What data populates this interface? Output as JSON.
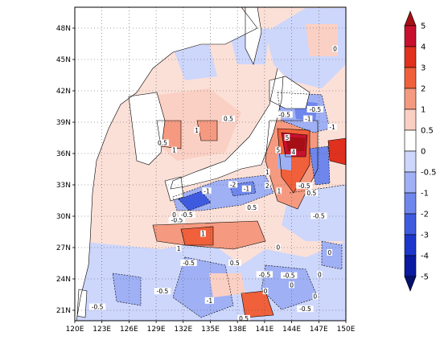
{
  "map": {
    "lon_ticks": [
      "120E",
      "123E",
      "126E",
      "129E",
      "132E",
      "135E",
      "138E",
      "141E",
      "144E",
      "147E",
      "150E"
    ],
    "lat_ticks": [
      "21N",
      "24N",
      "27N",
      "30N",
      "33N",
      "36N",
      "39N",
      "42N",
      "45N",
      "48N"
    ],
    "lon_range": [
      120,
      150
    ],
    "lat_range": [
      20,
      50
    ],
    "grid": "dotted",
    "projection": "lat-lon",
    "land_color": "#ffffff",
    "coastline_color": "#000000"
  },
  "colorbar": {
    "placement": "right",
    "levels": [
      "5",
      "4",
      "3",
      "2",
      "1",
      "0.5",
      "0",
      "-0.5",
      "-1",
      "-2",
      "-3",
      "-4",
      "-5"
    ],
    "colors": [
      "#a50f15",
      "#c8102e",
      "#e0301e",
      "#f0603a",
      "#f59a80",
      "#fbd0c4",
      "#ffffff",
      "#cdd6fb",
      "#9fb0f5",
      "#6f86ec",
      "#3e5be0",
      "#1c36cc",
      "#0a1aa0",
      "#05106e"
    ]
  },
  "contour_labels": [
    {
      "text": "0.5",
      "lon": 137.0,
      "lat": 39.3
    },
    {
      "text": "1",
      "lon": 133.5,
      "lat": 38.2
    },
    {
      "text": "0.5",
      "lon": 129.7,
      "lat": 37.0
    },
    {
      "text": "1",
      "lon": 131.0,
      "lat": 36.3
    },
    {
      "text": "-0.5",
      "lon": 146.6,
      "lat": 40.2
    },
    {
      "text": "-1",
      "lon": 145.8,
      "lat": 39.3
    },
    {
      "text": "-0.5",
      "lon": 143.2,
      "lat": 39.7
    },
    {
      "text": "-1",
      "lon": 148.5,
      "lat": 38.5
    },
    {
      "text": "5",
      "lon": 143.5,
      "lat": 37.5
    },
    {
      "text": "5",
      "lon": 142.5,
      "lat": 36.3
    },
    {
      "text": "4",
      "lon": 144.2,
      "lat": 36.1
    },
    {
      "text": "1",
      "lon": 141.3,
      "lat": 34.2
    },
    {
      "text": "2",
      "lon": 141.3,
      "lat": 32.9
    },
    {
      "text": "1",
      "lon": 142.6,
      "lat": 32.4
    },
    {
      "text": "-0.5",
      "lon": 145.4,
      "lat": 32.9
    },
    {
      "text": "0.5",
      "lon": 146.2,
      "lat": 32.2
    },
    {
      "text": "-1",
      "lon": 134.6,
      "lat": 32.4
    },
    {
      "text": "-2",
      "lon": 137.5,
      "lat": 33.0
    },
    {
      "text": "-1",
      "lon": 139.0,
      "lat": 32.6
    },
    {
      "text": "0.5",
      "lon": 139.6,
      "lat": 30.8
    },
    {
      "text": "-0.5",
      "lon": 147.0,
      "lat": 30.0
    },
    {
      "text": "-0.5",
      "lon": 131.3,
      "lat": 29.6
    },
    {
      "text": "-0.5",
      "lon": 132.4,
      "lat": 30.1
    },
    {
      "text": "0",
      "lon": 131.0,
      "lat": 30.1
    },
    {
      "text": "1",
      "lon": 134.2,
      "lat": 28.3
    },
    {
      "text": "1",
      "lon": 131.5,
      "lat": 26.9
    },
    {
      "text": "0",
      "lon": 142.5,
      "lat": 27.0
    },
    {
      "text": "-0.5",
      "lon": 132.6,
      "lat": 25.5
    },
    {
      "text": "0.5",
      "lon": 137.7,
      "lat": 25.5
    },
    {
      "text": "-0.5",
      "lon": 141.0,
      "lat": 24.4
    },
    {
      "text": "-0.5",
      "lon": 143.7,
      "lat": 24.3
    },
    {
      "text": "0",
      "lon": 147.1,
      "lat": 24.4
    },
    {
      "text": "0",
      "lon": 144.0,
      "lat": 23.4
    },
    {
      "text": "-0.5",
      "lon": 129.7,
      "lat": 22.8
    },
    {
      "text": "-1",
      "lon": 134.9,
      "lat": 21.9
    },
    {
      "text": "0",
      "lon": 141.1,
      "lat": 22.8
    },
    {
      "text": "0",
      "lon": 146.6,
      "lat": 22.3
    },
    {
      "text": "-0.5",
      "lon": 145.5,
      "lat": 21.1
    },
    {
      "text": "0.5",
      "lon": 138.7,
      "lat": 20.2
    },
    {
      "text": "-0.5",
      "lon": 122.5,
      "lat": 21.3
    },
    {
      "text": "0",
      "lon": 148.8,
      "lat": 46.0
    },
    {
      "text": "0",
      "lon": 148.2,
      "lat": 26.5
    }
  ]
}
